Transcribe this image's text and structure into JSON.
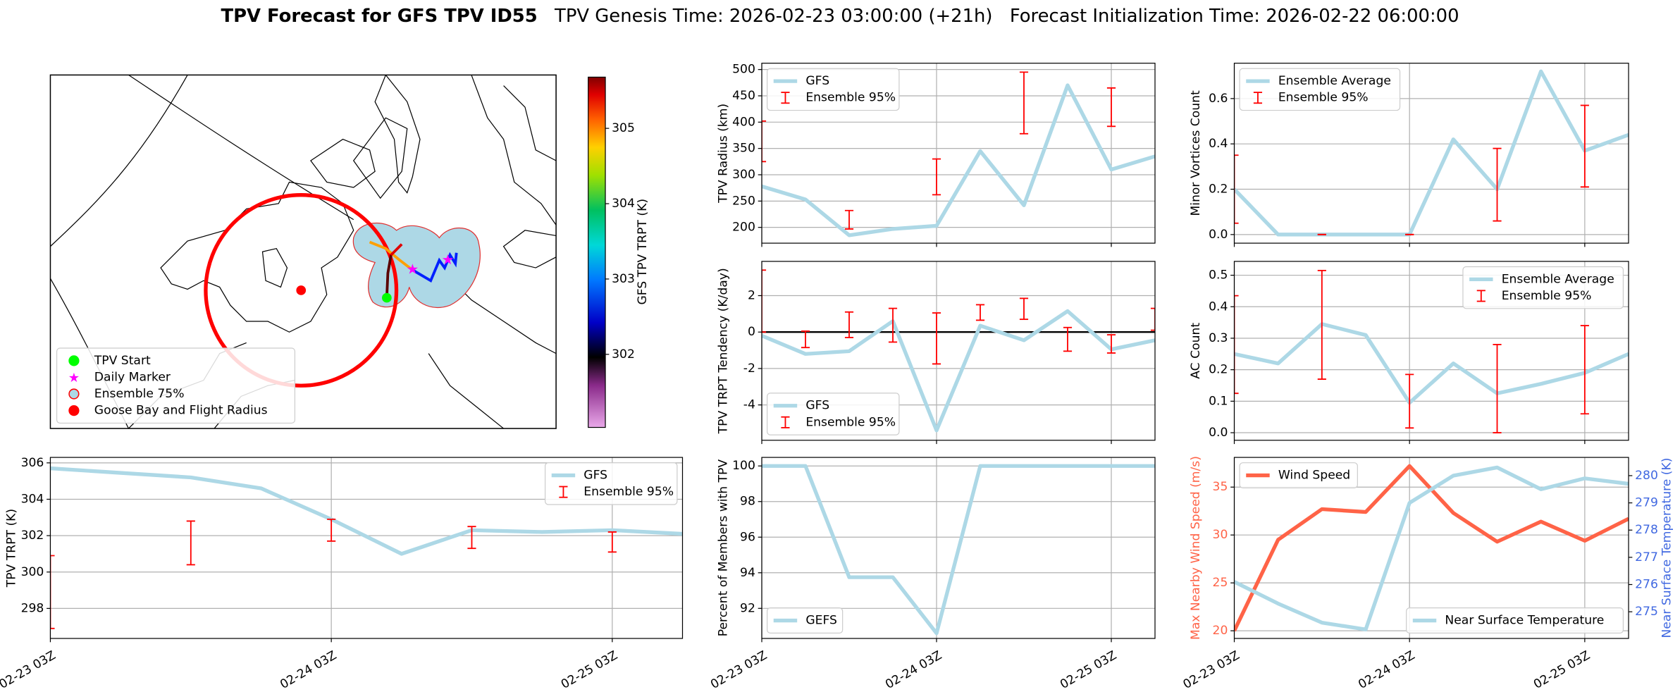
{
  "title": "TPV Forecast for GFS TPV ID55",
  "genesis": "TPV Genesis Time: 2026-02-23 03:00:00 (+21h)",
  "initialization": "Forecast Initialization Time: 2026-02-22 06:00:00",
  "chart_data": [
    {
      "type": "map",
      "legend_entries": [
        {
          "label": "TPV Start",
          "color": "#00ff00",
          "edge": "#00ff00",
          "marker": "circle"
        },
        {
          "label": "Daily Marker",
          "color": "#ff00ff",
          "edge": "#ff00ff",
          "marker": "star"
        },
        {
          "label": "Ensemble 75%",
          "color": "#add8e6",
          "edge": "#ff0000",
          "marker": "circle"
        },
        {
          "label": "Goose Bay and Flight Radius",
          "color": "#ff0000",
          "edge": "#ff0000",
          "marker": "circle"
        }
      ],
      "legend": "lower left",
      "colorbar": {
        "label": "GFS TPV TRPT (K)",
        "lim": [
          301.03,
          305.68
        ],
        "ticks": [
          302,
          303,
          304,
          305
        ]
      }
    },
    {
      "type": "line",
      "ylabel": "TPV Radius (km)",
      "grid": true,
      "legend": "upper left",
      "x": [
        "02-23 03Z",
        "02-23 09Z",
        "02-23 15Z",
        "02-23 21Z",
        "02-24 03Z",
        "02-24 09Z",
        "02-24 15Z",
        "02-24 21Z",
        "02-25 03Z",
        "02-25 09Z"
      ],
      "ylim": [
        170,
        512
      ],
      "yticks": [
        200,
        250,
        300,
        350,
        400,
        450,
        500
      ],
      "series": [
        {
          "name": "GFS",
          "color": "#add8e6",
          "values": [
            278,
            253,
            185,
            197,
            203,
            345,
            242,
            470,
            310,
            335
          ]
        }
      ],
      "errorbars": {
        "name": "Ensemble 95%",
        "color": "#ff0000",
        "lower": [
          325,
          null,
          197,
          null,
          262,
          null,
          378,
          null,
          392,
          null
        ],
        "upper": [
          402,
          null,
          232,
          null,
          330,
          null,
          495,
          null,
          465,
          null
        ]
      }
    },
    {
      "type": "line",
      "ylabel": "TPV TRPT Tendency (K/day)",
      "grid": true,
      "legend": "lower left",
      "x": [
        "02-23 03Z",
        "02-23 09Z",
        "02-23 15Z",
        "02-23 21Z",
        "02-24 03Z",
        "02-24 09Z",
        "02-24 15Z",
        "02-24 21Z",
        "02-25 03Z",
        "02-25 09Z"
      ],
      "ylim": [
        -5.94,
        3.88
      ],
      "yticks": [
        -4,
        -2,
        0,
        2
      ],
      "hline": {
        "value": 0,
        "color": "#000000"
      },
      "series": [
        {
          "name": "GFS",
          "color": "#add8e6",
          "values": [
            -0.2,
            -1.2,
            -1.05,
            0.6,
            -5.4,
            0.35,
            -0.45,
            1.15,
            -0.95,
            -0.45
          ]
        }
      ],
      "errorbars": {
        "name": "Ensemble 95%",
        "color": "#ff0000",
        "lower": [
          0.0,
          -0.85,
          -0.3,
          -0.55,
          -1.75,
          0.65,
          0.7,
          -1.05,
          -1.15,
          0.1
        ],
        "upper": [
          3.4,
          0.05,
          1.1,
          1.3,
          1.05,
          1.5,
          1.85,
          0.25,
          -0.15,
          1.3
        ]
      }
    },
    {
      "type": "line",
      "ylabel": "Percent of Members with TPV",
      "grid": true,
      "legend": "lower left",
      "x": [
        "02-23 03Z",
        "02-23 09Z",
        "02-23 15Z",
        "02-23 21Z",
        "02-24 03Z",
        "02-24 09Z",
        "02-24 15Z",
        "02-24 21Z",
        "02-25 03Z",
        "02-25 09Z"
      ],
      "xticks": [
        "02-23 03Z",
        "02-24 03Z",
        "02-25 03Z"
      ],
      "ylim": [
        90.31,
        100.48
      ],
      "yticks": [
        92,
        94,
        96,
        98,
        100
      ],
      "series": [
        {
          "name": "GEFS",
          "color": "#add8e6",
          "values": [
            100,
            100,
            93.75,
            93.75,
            90.6,
            100,
            100,
            100,
            100,
            100
          ]
        }
      ]
    },
    {
      "type": "line",
      "ylabel": "Minor Vortices Count",
      "grid": true,
      "legend": "upper left",
      "x": [
        "02-23 03Z",
        "02-23 09Z",
        "02-23 15Z",
        "02-23 21Z",
        "02-24 03Z",
        "02-24 09Z",
        "02-24 15Z",
        "02-24 21Z",
        "02-25 03Z",
        "02-25 09Z"
      ],
      "ylim": [
        -0.038,
        0.756
      ],
      "yticks": [
        {
          "value": 0,
          "label": "0.0"
        },
        0.2,
        0.4,
        0.6
      ],
      "series": [
        {
          "name": "Ensemble Average",
          "color": "#add8e6",
          "values": [
            0.2,
            0,
            0,
            0,
            0,
            0.42,
            0.2,
            0.72,
            0.37,
            0.44
          ]
        }
      ],
      "errorbars": {
        "name": "Ensemble 95%",
        "color": "#ff0000",
        "lower": [
          0.05,
          null,
          0,
          null,
          0,
          null,
          0.06,
          null,
          0.21,
          null
        ],
        "upper": [
          0.35,
          null,
          0,
          null,
          0,
          null,
          0.38,
          null,
          0.57,
          null
        ]
      }
    },
    {
      "type": "line",
      "ylabel": "AC Count",
      "grid": true,
      "legend": "upper right",
      "x": [
        "02-23 03Z",
        "02-23 09Z",
        "02-23 15Z",
        "02-23 21Z",
        "02-24 03Z",
        "02-24 09Z",
        "02-24 15Z",
        "02-24 21Z",
        "02-25 03Z",
        "02-25 09Z"
      ],
      "ylim": [
        -0.024,
        0.544
      ],
      "yticks": [
        {
          "value": 0,
          "label": "0.0"
        },
        0.1,
        0.2,
        0.3,
        0.4,
        0.5
      ],
      "series": [
        {
          "name": "Ensemble Average",
          "color": "#add8e6",
          "values": [
            0.25,
            0.22,
            0.345,
            0.31,
            0.095,
            0.22,
            0.125,
            0.155,
            0.19,
            0.25
          ]
        }
      ],
      "errorbars": {
        "name": "Ensemble 95%",
        "color": "#ff0000",
        "lower": [
          0.125,
          null,
          0.17,
          null,
          0.015,
          null,
          0.0,
          null,
          0.06,
          null
        ],
        "upper": [
          0.435,
          null,
          0.515,
          null,
          0.185,
          null,
          0.28,
          null,
          0.34,
          null
        ]
      }
    },
    {
      "type": "line",
      "ylabel": "Max Nearby Wind Speed (m/s)",
      "y2label": "Near Surface Temperature (K)",
      "ylabel_color": "#ff6347",
      "y2label_color": "#4169e1",
      "grid": true,
      "x": [
        "02-23 03Z",
        "02-23 09Z",
        "02-23 15Z",
        "02-23 21Z",
        "02-24 03Z",
        "02-24 09Z",
        "02-24 15Z",
        "02-24 21Z",
        "02-25 03Z",
        "02-25 09Z"
      ],
      "xticks": [
        "02-23 03Z",
        "02-24 03Z",
        "02-25 03Z"
      ],
      "ylim": [
        19.2,
        38.1
      ],
      "yticks": [
        20,
        25,
        30,
        35
      ],
      "y2lim": [
        274.02,
        280.67
      ],
      "y2ticks": [
        275,
        276,
        277,
        278,
        279,
        280
      ],
      "series": [
        {
          "name": "Wind Speed",
          "color": "#ff6347",
          "legend": "upper left",
          "values": [
            20,
            29.5,
            32.7,
            32.4,
            37.2,
            32.3,
            29.3,
            31.4,
            29.4,
            31.7
          ]
        },
        {
          "name": "Near Surface Temperature",
          "color": "#add8e6",
          "axis": "y2",
          "legend": "lower right",
          "values": [
            276.1,
            275.3,
            274.6,
            274.35,
            279.0,
            280.0,
            280.3,
            279.5,
            279.9,
            279.7
          ]
        }
      ]
    },
    {
      "type": "line",
      "ylabel": "TPV TRPT (K)",
      "grid": true,
      "legend": "upper right",
      "x": [
        "02-23 03Z",
        "02-23 09Z",
        "02-23 15Z",
        "02-23 21Z",
        "02-24 03Z",
        "02-24 09Z",
        "02-24 15Z",
        "02-24 21Z",
        "02-25 03Z",
        "02-25 09Z"
      ],
      "xticks": [
        "02-23 03Z",
        "02-24 03Z",
        "02-25 03Z"
      ],
      "ylim": [
        296.35,
        306.3
      ],
      "yticks": [
        298,
        300,
        302,
        304,
        306
      ],
      "series": [
        {
          "name": "GFS",
          "color": "#add8e6",
          "values": [
            305.7,
            305.45,
            305.2,
            304.6,
            302.9,
            301.0,
            302.3,
            302.2,
            302.3,
            302.1
          ]
        }
      ],
      "errorbars": {
        "name": "Ensemble 95%",
        "color": "#ff0000",
        "lower": [
          296.9,
          null,
          300.4,
          null,
          301.7,
          null,
          301.3,
          null,
          301.1,
          null
        ],
        "upper": [
          300.9,
          null,
          302.8,
          null,
          302.9,
          null,
          302.5,
          null,
          302.2,
          null
        ]
      }
    }
  ]
}
